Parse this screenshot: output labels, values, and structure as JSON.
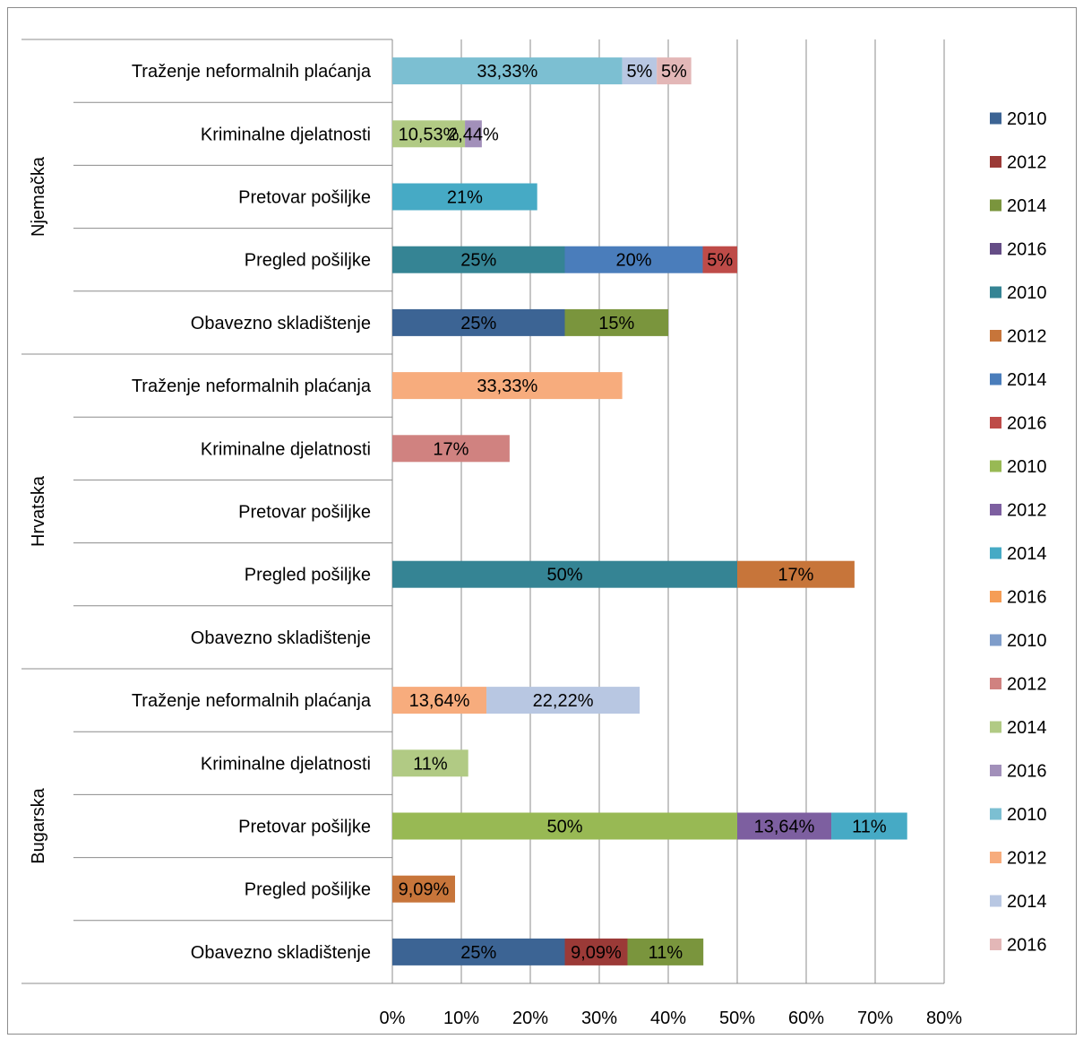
{
  "chart_data": {
    "type": "bar",
    "orientation": "horizontal",
    "stacked": true,
    "title": "",
    "xlabel": "",
    "ylabel": "",
    "xlim": [
      0,
      80
    ],
    "x_ticks": [
      "0%",
      "10%",
      "20%",
      "30%",
      "40%",
      "50%",
      "60%",
      "70%",
      "80%"
    ],
    "grid": "vertical",
    "legend_position": "right",
    "groups": [
      {
        "country": "Njemačka",
        "rows": [
          {
            "category": "Traženje neformalnih plaćanja",
            "segments": [
              {
                "series": 16,
                "value": 33.33,
                "label": "33,33%"
              },
              {
                "series": 18,
                "value": 5,
                "label": "5%"
              },
              {
                "series": 19,
                "value": 5,
                "label": "5%"
              }
            ]
          },
          {
            "category": "Kriminalne djelatnosti",
            "segments": [
              {
                "series": 14,
                "value": 10.53,
                "label": "10,53%"
              },
              {
                "series": 15,
                "value": 2.44,
                "label": "2,44%"
              }
            ]
          },
          {
            "category": "Pretovar pošiljke",
            "segments": [
              {
                "series": 10,
                "value": 21,
                "label": "21%"
              }
            ]
          },
          {
            "category": "Pregled pošiljke",
            "segments": [
              {
                "series": 4,
                "value": 25,
                "label": "25%"
              },
              {
                "series": 6,
                "value": 20,
                "label": "20%"
              },
              {
                "series": 7,
                "value": 5,
                "label": "5%"
              }
            ]
          },
          {
            "category": "Obavezno skladištenje",
            "segments": [
              {
                "series": 0,
                "value": 25,
                "label": "25%"
              },
              {
                "series": 2,
                "value": 15,
                "label": "15%"
              }
            ]
          }
        ]
      },
      {
        "country": "Hrvatska",
        "rows": [
          {
            "category": "Traženje neformalnih plaćanja",
            "segments": [
              {
                "series": 17,
                "value": 33.33,
                "label": "33,33%"
              }
            ]
          },
          {
            "category": "Kriminalne djelatnosti",
            "segments": [
              {
                "series": 13,
                "value": 17,
                "label": "17%"
              }
            ]
          },
          {
            "category": "Pretovar pošiljke",
            "segments": []
          },
          {
            "category": "Pregled pošiljke",
            "segments": [
              {
                "series": 4,
                "value": 50,
                "label": "50%"
              },
              {
                "series": 5,
                "value": 17,
                "label": "17%"
              }
            ]
          },
          {
            "category": "Obavezno skladištenje",
            "segments": []
          }
        ]
      },
      {
        "country": "Bugarska",
        "rows": [
          {
            "category": "Traženje neformalnih plaćanja",
            "segments": [
              {
                "series": 17,
                "value": 13.64,
                "label": "13,64%"
              },
              {
                "series": 18,
                "value": 22.22,
                "label": "22,22%"
              }
            ]
          },
          {
            "category": "Kriminalne djelatnosti",
            "segments": [
              {
                "series": 14,
                "value": 11,
                "label": "11%"
              }
            ]
          },
          {
            "category": "Pretovar pošiljke",
            "segments": [
              {
                "series": 8,
                "value": 50,
                "label": "50%"
              },
              {
                "series": 9,
                "value": 13.64,
                "label": "13,64%"
              },
              {
                "series": 10,
                "value": 11,
                "label": "11%"
              }
            ]
          },
          {
            "category": "Pregled pošiljke",
            "segments": [
              {
                "series": 5,
                "value": 9.09,
                "label": "9,09%"
              }
            ]
          },
          {
            "category": "Obavezno skladištenje",
            "segments": [
              {
                "series": 0,
                "value": 25,
                "label": "25%"
              },
              {
                "series": 1,
                "value": 9.09,
                "label": "9,09%"
              },
              {
                "series": 2,
                "value": 11,
                "label": "11%"
              }
            ]
          }
        ]
      }
    ],
    "legend": [
      {
        "name": "2010",
        "color": "#3C6494"
      },
      {
        "name": "2012",
        "color": "#9B3A37"
      },
      {
        "name": "2014",
        "color": "#7A953D"
      },
      {
        "name": "2016",
        "color": "#654D86"
      },
      {
        "name": "2010",
        "color": "#358494"
      },
      {
        "name": "2012",
        "color": "#C7753A"
      },
      {
        "name": "2014",
        "color": "#4A7DBB"
      },
      {
        "name": "2016",
        "color": "#BE4B48"
      },
      {
        "name": "2010",
        "color": "#98B954"
      },
      {
        "name": "2012",
        "color": "#7D5FA0"
      },
      {
        "name": "2014",
        "color": "#46AAC5"
      },
      {
        "name": "2016",
        "color": "#F59D56"
      },
      {
        "name": "2010",
        "color": "#7F9DCA"
      },
      {
        "name": "2012",
        "color": "#D08280"
      },
      {
        "name": "2014",
        "color": "#B1CA84"
      },
      {
        "name": "2016",
        "color": "#A290BA"
      },
      {
        "name": "2010",
        "color": "#7CBFD2"
      },
      {
        "name": "2012",
        "color": "#F7AC7D"
      },
      {
        "name": "2014",
        "color": "#B8C7E2"
      },
      {
        "name": "2016",
        "color": "#E3B7B7"
      }
    ]
  }
}
